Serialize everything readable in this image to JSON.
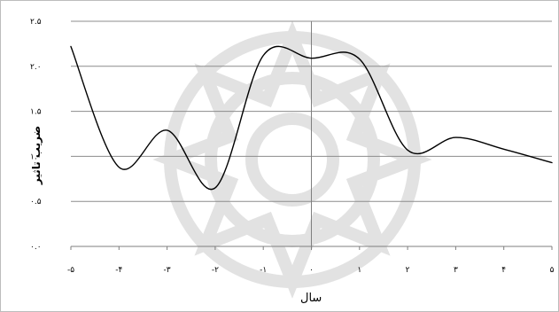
{
  "chart_data": {
    "type": "line",
    "title": "",
    "xlabel": "سال",
    "ylabel": "ضريب تاثير",
    "xlim": [
      -5,
      5
    ],
    "ylim": [
      0,
      2.5
    ],
    "x_ticks": [
      "-۵",
      "-۴",
      "-۳",
      "-۲",
      "-۱",
      "۰",
      "۱",
      "۲",
      "۳",
      "۴",
      "۵"
    ],
    "y_ticks": [
      "۰.۰",
      "۰.۵",
      "۱.۰",
      "۱.۵",
      "۲.۰",
      "۲.۵"
    ],
    "grid": "horizontal",
    "series": [
      {
        "values": [
          {
            "x": -5,
            "y": 2.22
          },
          {
            "x": -4,
            "y": 0.88
          },
          {
            "x": -3,
            "y": 1.29
          },
          {
            "x": -2,
            "y": 0.65
          },
          {
            "x": -1,
            "y": 2.12
          },
          {
            "x": 0,
            "y": 2.09
          },
          {
            "x": 1,
            "y": 2.08
          },
          {
            "x": 2,
            "y": 1.07
          },
          {
            "x": 3,
            "y": 1.21
          },
          {
            "x": 4,
            "y": 1.08
          },
          {
            "x": 5,
            "y": 0.93
          }
        ]
      }
    ],
    "colors": {
      "line": "#000000",
      "grid": "#8c8c8c",
      "watermark": "#cfcfcf"
    }
  }
}
